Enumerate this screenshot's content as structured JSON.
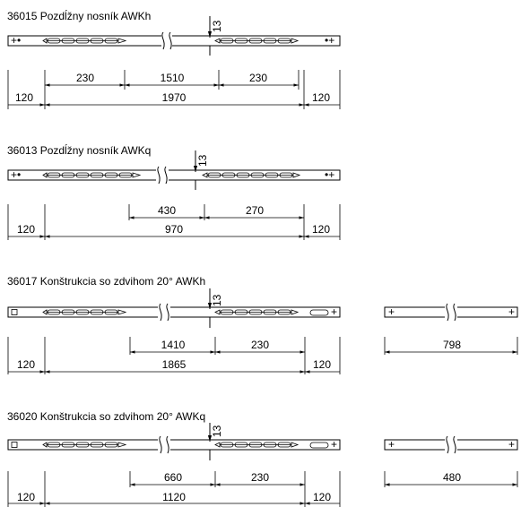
{
  "sections": [
    {
      "title": "36015 Pozdĺžny nosník AWKh",
      "arrow_value": "13",
      "dims_top": [
        "230",
        "1510",
        "230"
      ],
      "dims_bottom": [
        "120",
        "1970",
        "120"
      ],
      "side_dim": ""
    },
    {
      "title": "36013 Pozdĺžny nosník AWKq",
      "arrow_value": "13",
      "dims_top": [
        "430",
        "270"
      ],
      "dims_bottom": [
        "120",
        "970",
        "120"
      ],
      "side_dim": ""
    },
    {
      "title": "36017 Konštrukcia so zdvihom 20° AWKh",
      "arrow_value": "13",
      "dims_top": [
        "1410",
        "230"
      ],
      "dims_bottom": [
        "120",
        "1865",
        "120"
      ],
      "side_dim": "798"
    },
    {
      "title": "36020 Konštrukcia so zdvihom 20° AWKq",
      "arrow_value": "13",
      "dims_top": [
        "660",
        "230"
      ],
      "dims_bottom": [
        "120",
        "1120",
        "120"
      ],
      "side_dim": "480"
    }
  ]
}
